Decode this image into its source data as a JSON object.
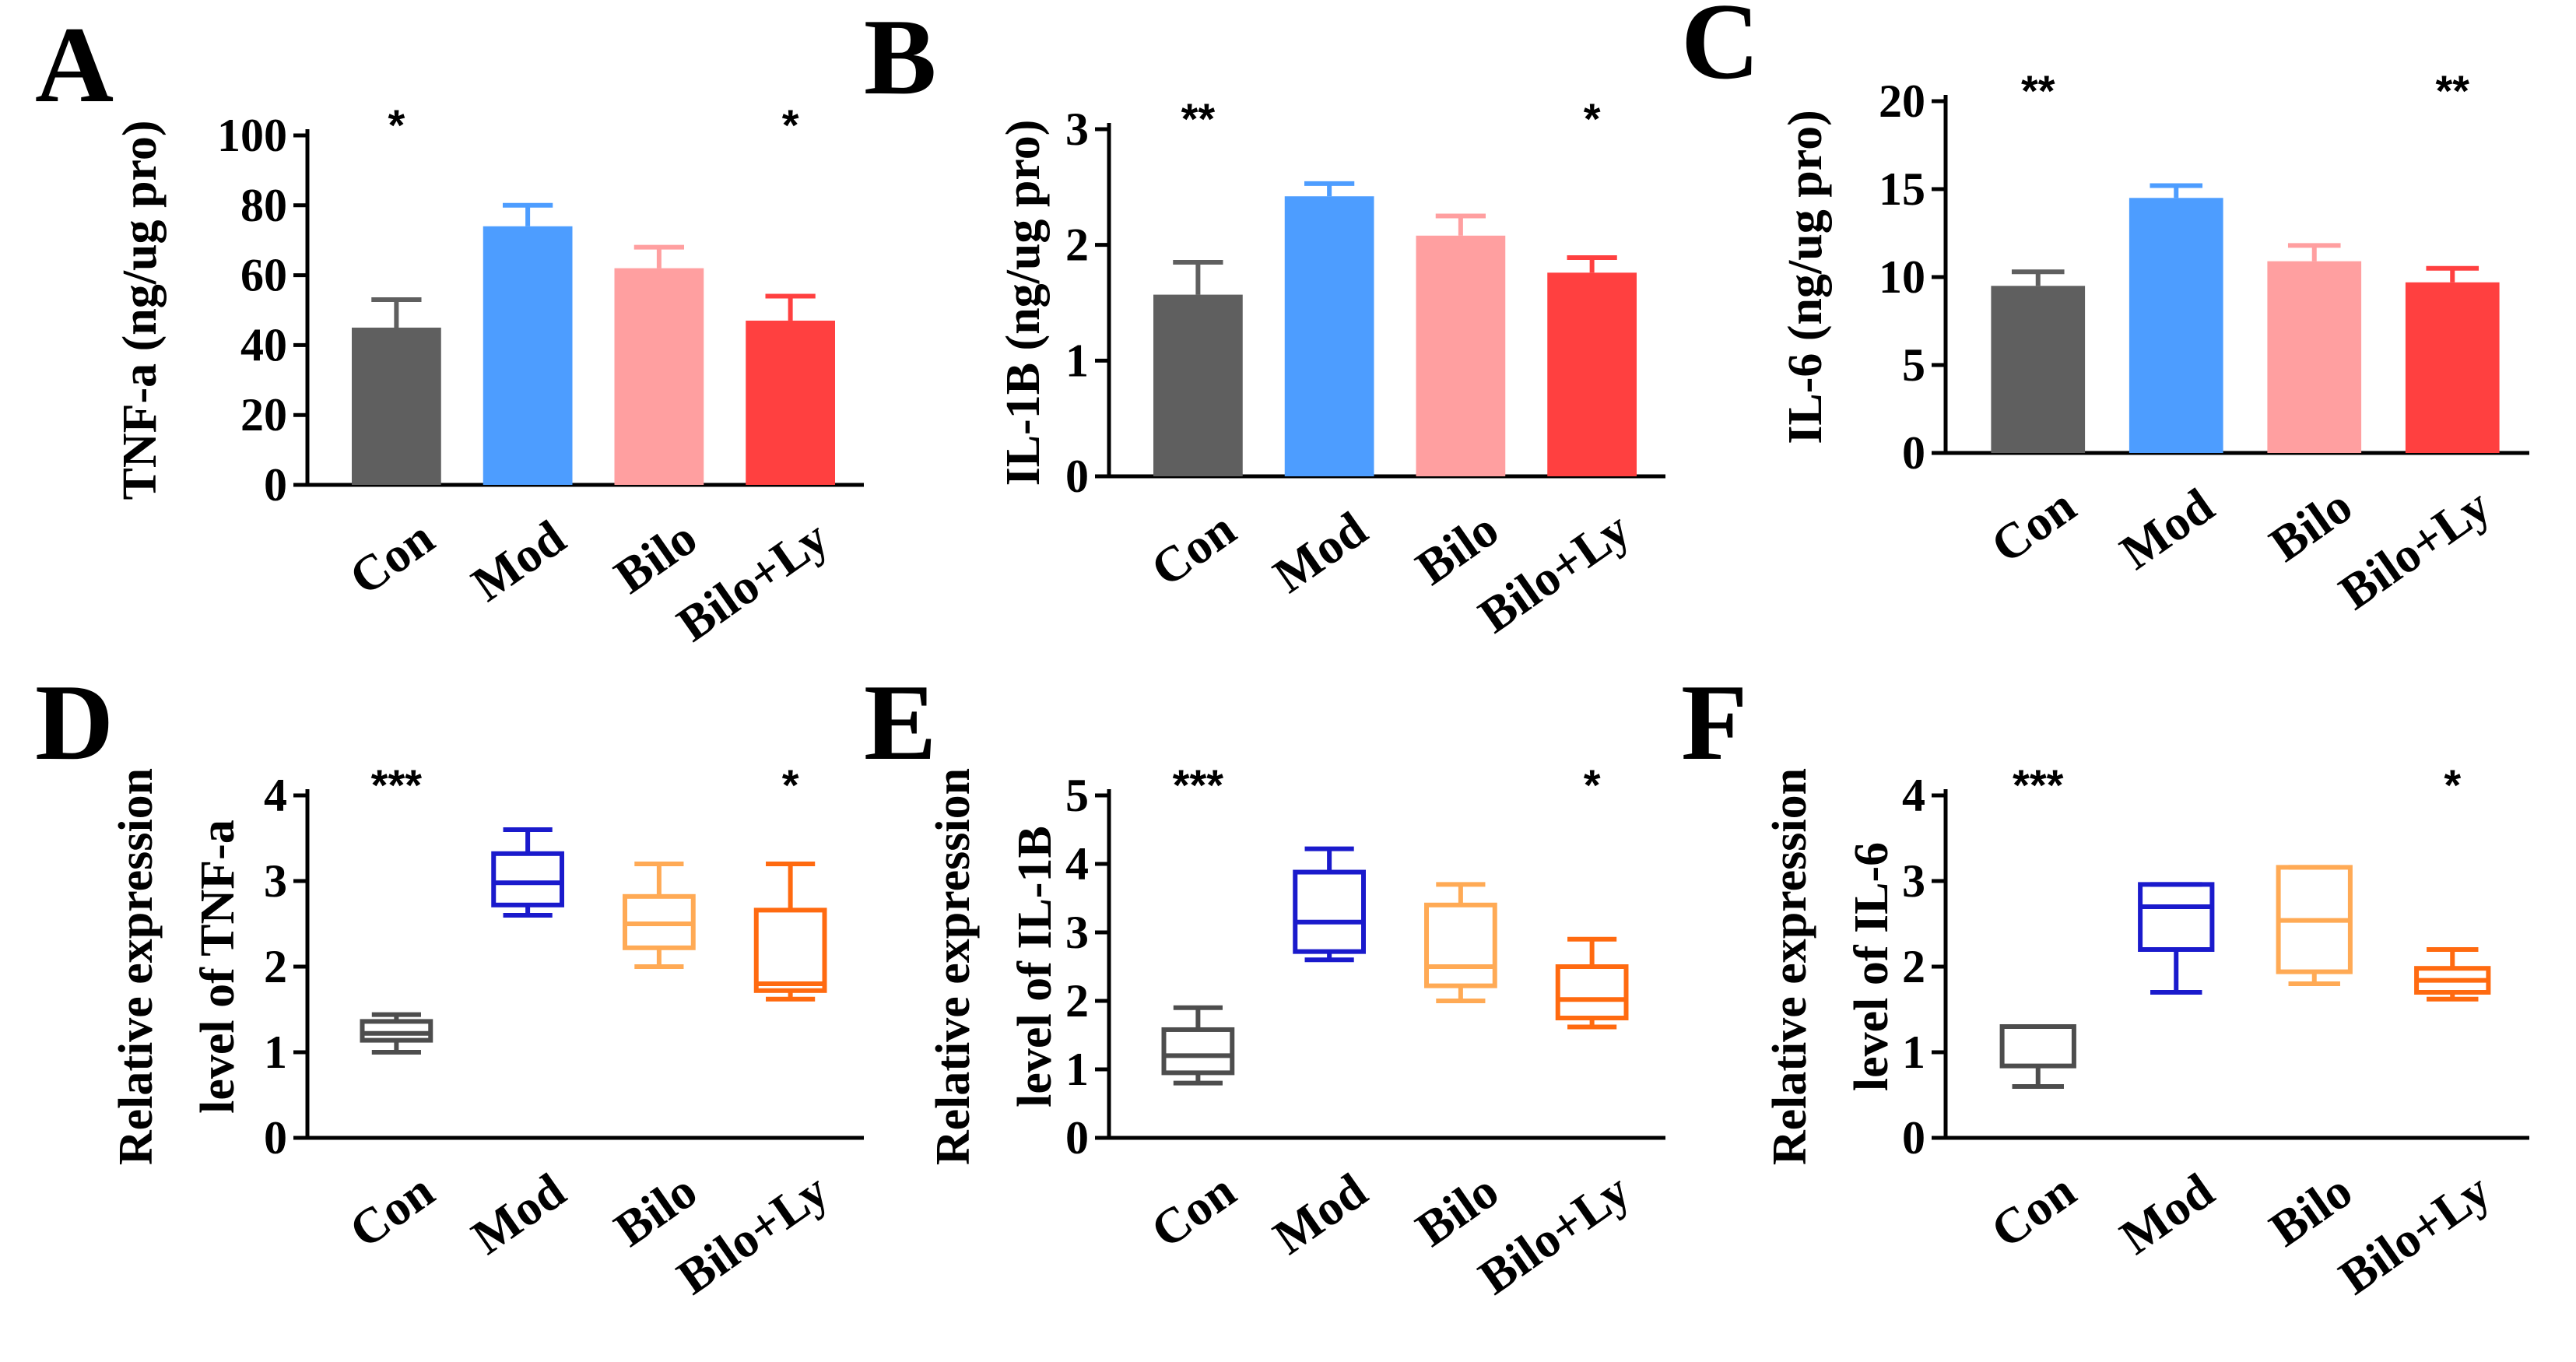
{
  "chart_data": [
    {
      "panel": "A",
      "type": "bar",
      "categories": [
        "Con",
        "Mod",
        "Bilo",
        "Bilo+Ly"
      ],
      "values": [
        45,
        74,
        62,
        47
      ],
      "errors": [
        8,
        6,
        6,
        7
      ],
      "colors": [
        "#5f5f5f",
        "#4d9dff",
        "#ff9fa0",
        "#ff4040"
      ],
      "ylabel": "TNF-a (ng/ug pro)",
      "ylim": [
        0,
        100
      ],
      "yticks": [
        0,
        20,
        40,
        60,
        80,
        100
      ],
      "significance": [
        "*",
        "",
        "",
        "*"
      ]
    },
    {
      "panel": "B",
      "type": "bar",
      "categories": [
        "Con",
        "Mod",
        "Bilo",
        "Bilo+Ly"
      ],
      "values": [
        1.57,
        2.42,
        2.08,
        1.76
      ],
      "errors": [
        0.28,
        0.11,
        0.17,
        0.13
      ],
      "colors": [
        "#5f5f5f",
        "#4d9dff",
        "#ff9fa0",
        "#ff4040"
      ],
      "ylabel": "IL-1B (ng/ug pro)",
      "ylim": [
        0,
        3
      ],
      "yticks": [
        0,
        1,
        2,
        3
      ],
      "significance": [
        "**",
        "",
        "",
        "*"
      ]
    },
    {
      "panel": "C",
      "type": "bar",
      "categories": [
        "Con",
        "Mod",
        "Bilo",
        "Bilo+Ly"
      ],
      "values": [
        9.5,
        14.5,
        10.9,
        9.7
      ],
      "errors": [
        0.8,
        0.7,
        0.9,
        0.8
      ],
      "colors": [
        "#5f5f5f",
        "#4d9dff",
        "#ff9fa0",
        "#ff4040"
      ],
      "ylabel": "IL-6 (ng/ug pro)",
      "ylim": [
        0,
        20
      ],
      "yticks": [
        0,
        5,
        10,
        15,
        20
      ],
      "significance": [
        "**",
        "",
        "",
        "**"
      ]
    },
    {
      "panel": "D",
      "type": "box",
      "categories": [
        "Con",
        "Mod",
        "Bilo",
        "Bilo+Ly"
      ],
      "boxes": [
        {
          "min": 1.0,
          "q1": 1.14,
          "median": 1.22,
          "q3": 1.36,
          "max": 1.44
        },
        {
          "min": 2.6,
          "q1": 2.72,
          "median": 2.98,
          "q3": 3.32,
          "max": 3.6
        },
        {
          "min": 2.0,
          "q1": 2.22,
          "median": 2.5,
          "q3": 2.82,
          "max": 3.2
        },
        {
          "min": 1.62,
          "q1": 1.72,
          "median": 1.8,
          "q3": 2.66,
          "max": 3.2
        }
      ],
      "colors": [
        "#4d4d4d",
        "#1a1acc",
        "#ffaa55",
        "#ff6a10"
      ],
      "ylabel": [
        "Relative expression",
        "level of TNF-a"
      ],
      "ylim": [
        0,
        4
      ],
      "yticks": [
        0,
        1,
        2,
        3,
        4
      ],
      "significance": [
        "***",
        "",
        "",
        "*"
      ]
    },
    {
      "panel": "E",
      "type": "box",
      "categories": [
        "Con",
        "Mod",
        "Bilo",
        "Bilo+Ly"
      ],
      "boxes": [
        {
          "min": 0.8,
          "q1": 0.95,
          "median": 1.2,
          "q3": 1.58,
          "max": 1.9
        },
        {
          "min": 2.6,
          "q1": 2.72,
          "median": 3.15,
          "q3": 3.88,
          "max": 4.22
        },
        {
          "min": 2.0,
          "q1": 2.22,
          "median": 2.5,
          "q3": 3.4,
          "max": 3.7
        },
        {
          "min": 1.62,
          "q1": 1.75,
          "median": 2.02,
          "q3": 2.5,
          "max": 2.9
        }
      ],
      "colors": [
        "#4d4d4d",
        "#1a1acc",
        "#ffaa55",
        "#ff6a10"
      ],
      "ylabel": [
        "Relative expression",
        "level of IL-1B"
      ],
      "ylim": [
        0,
        5
      ],
      "yticks": [
        0,
        1,
        2,
        3,
        4,
        5
      ],
      "significance": [
        "***",
        "",
        "",
        "*"
      ]
    },
    {
      "panel": "F",
      "type": "box",
      "categories": [
        "Con",
        "Mod",
        "Bilo",
        "Bilo+Ly"
      ],
      "boxes": [
        {
          "min": 0.6,
          "q1": 0.84,
          "median": 1.3,
          "q3": 1.3,
          "max": 1.3
        },
        {
          "min": 1.7,
          "q1": 2.2,
          "median": 2.7,
          "q3": 2.96,
          "max": 2.96
        },
        {
          "min": 1.8,
          "q1": 1.94,
          "median": 2.54,
          "q3": 3.16,
          "max": 3.16
        },
        {
          "min": 1.62,
          "q1": 1.7,
          "median": 1.84,
          "q3": 1.98,
          "max": 2.2
        }
      ],
      "colors": [
        "#4d4d4d",
        "#1a1acc",
        "#ffaa55",
        "#ff6a10"
      ],
      "ylabel": [
        "Relative expression",
        "level of IL-6"
      ],
      "ylim": [
        0,
        4
      ],
      "yticks": [
        0,
        1,
        2,
        3,
        4
      ],
      "significance": [
        "***",
        "",
        "",
        "*"
      ]
    }
  ]
}
